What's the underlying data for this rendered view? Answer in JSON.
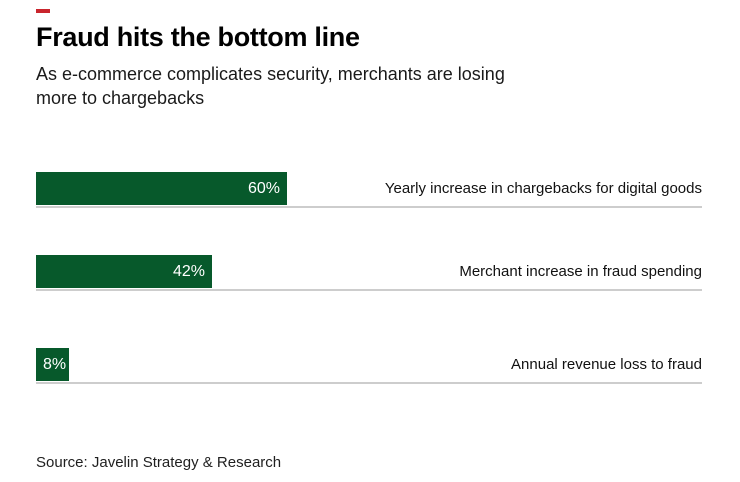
{
  "header": {
    "accent_color": "#c9252d",
    "title": "Fraud hits the bottom line",
    "subtitle_line1": "As e-commerce complicates security, merchants are losing",
    "subtitle_line2": "more to chargebacks"
  },
  "chart_data": {
    "type": "bar",
    "orientation": "horizontal",
    "title": "Fraud hits the bottom line",
    "subtitle": "As e-commerce complicates security, merchants are losing more to chargebacks",
    "categories": [
      "Yearly increase in chargebacks for digital goods",
      "Merchant increase in fraud spending",
      "Annual revenue loss to fraud"
    ],
    "values": [
      60,
      42,
      8
    ],
    "value_labels": [
      "60%",
      "42%",
      "8%"
    ],
    "xlim": [
      0,
      100
    ],
    "bar_color": "#07592b",
    "value_label_color": "#ffffff",
    "grid": false,
    "legend": false
  },
  "footer": {
    "source": "Source: Javelin Strategy & Research"
  }
}
